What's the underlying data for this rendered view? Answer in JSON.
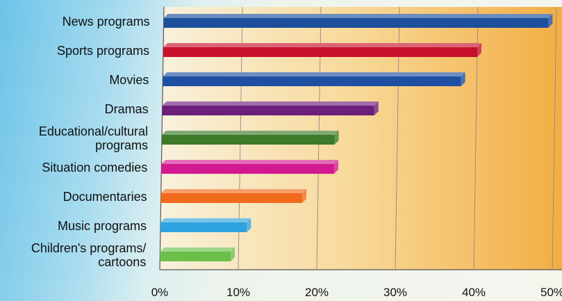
{
  "chart_data": {
    "type": "bar",
    "orientation": "horizontal",
    "categories": [
      [
        "News programs"
      ],
      [
        "Sports programs"
      ],
      [
        "Movies"
      ],
      [
        "Dramas"
      ],
      [
        "Educational/cultural",
        "programs"
      ],
      [
        "Situation comedies"
      ],
      [
        "Documentaries"
      ],
      [
        "Music programs"
      ],
      [
        "Children's programs/",
        "cartoons"
      ]
    ],
    "values": [
      49,
      40,
      38,
      27,
      22,
      22,
      18,
      11,
      9
    ],
    "bar_colors": [
      "#1c4f9c",
      "#c8102e",
      "#1f4fa3",
      "#6b1f7a",
      "#3d7a2a",
      "#d3198f",
      "#f26b1d",
      "#2ea3df",
      "#6cc04a"
    ],
    "xlim": [
      0,
      50
    ],
    "xticks": [
      "0%",
      "10%",
      "20%",
      "30%",
      "40%",
      "50%"
    ],
    "title": "",
    "xlabel": "",
    "ylabel": "",
    "grid": true,
    "panel_color": "#f5c15a"
  }
}
